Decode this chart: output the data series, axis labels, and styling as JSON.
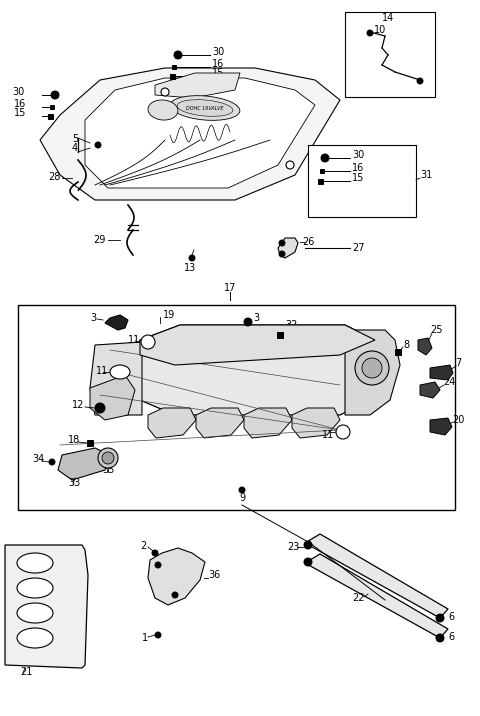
{
  "bg_color": "#ffffff",
  "lc": "#000000",
  "fig_w": 4.8,
  "fig_h": 7.16,
  "dpi": 100,
  "lw": 0.7
}
